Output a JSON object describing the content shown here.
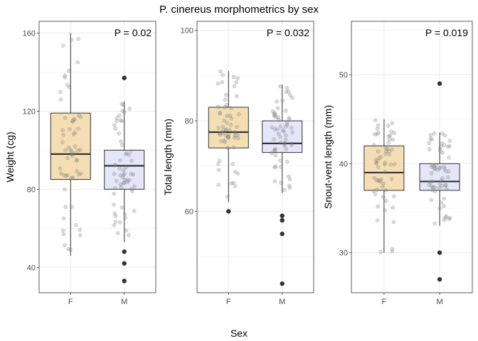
{
  "figure": {
    "title": "P. cinereus morphometrics by sex",
    "xlabel": "Sex"
  },
  "colors": {
    "F": "#f5deb3",
    "M": "#e6e6fa",
    "panel_border": "#333333",
    "grid_major": "#ebebeb",
    "point": "#000000"
  },
  "chart_data": [
    {
      "type": "box",
      "ylabel": "Weight (cg)",
      "annotation": "P = 0.02",
      "categories": [
        "F",
        "M"
      ],
      "ylim": [
        27,
        166
      ],
      "yticks": [
        40,
        80,
        120,
        160
      ],
      "grid": true,
      "boxes": [
        {
          "name": "F",
          "q1": 85,
          "median": 98,
          "q3": 119,
          "whisker_low": 46,
          "whisker_high": 160,
          "outliers": []
        },
        {
          "name": "M",
          "q1": 80,
          "median": 92,
          "q3": 100,
          "whisker_low": 53,
          "whisker_high": 125,
          "outliers": [
            137,
            48,
            42,
            33
          ]
        }
      ]
    },
    {
      "type": "box",
      "ylabel": "Total length (mm)",
      "annotation": "P = 0.032",
      "categories": [
        "F",
        "M"
      ],
      "ylim": [
        42,
        102
      ],
      "yticks": [
        60,
        80,
        100
      ],
      "grid": true,
      "boxes": [
        {
          "name": "F",
          "q1": 74,
          "median": 77.5,
          "q3": 83,
          "whisker_low": 62,
          "whisker_high": 91,
          "outliers": [
            60
          ]
        },
        {
          "name": "M",
          "q1": 73,
          "median": 75,
          "q3": 80,
          "whisker_low": 64,
          "whisker_high": 88,
          "outliers": [
            59,
            58,
            55,
            44
          ]
        }
      ]
    },
    {
      "type": "box",
      "ylabel": "Snout-vent length (mm)",
      "annotation": "P = 0.019",
      "categories": [
        "F",
        "M"
      ],
      "ylim": [
        25.5,
        56
      ],
      "yticks": [
        30,
        40,
        50
      ],
      "grid": true,
      "boxes": [
        {
          "name": "F",
          "q1": 37,
          "median": 39,
          "q3": 42,
          "whisker_low": 30,
          "whisker_high": 45,
          "outliers": []
        },
        {
          "name": "M",
          "q1": 37,
          "median": 38,
          "q3": 40,
          "whisker_low": 33,
          "whisker_high": 43.5,
          "outliers": [
            49,
            30,
            27
          ]
        }
      ]
    }
  ]
}
